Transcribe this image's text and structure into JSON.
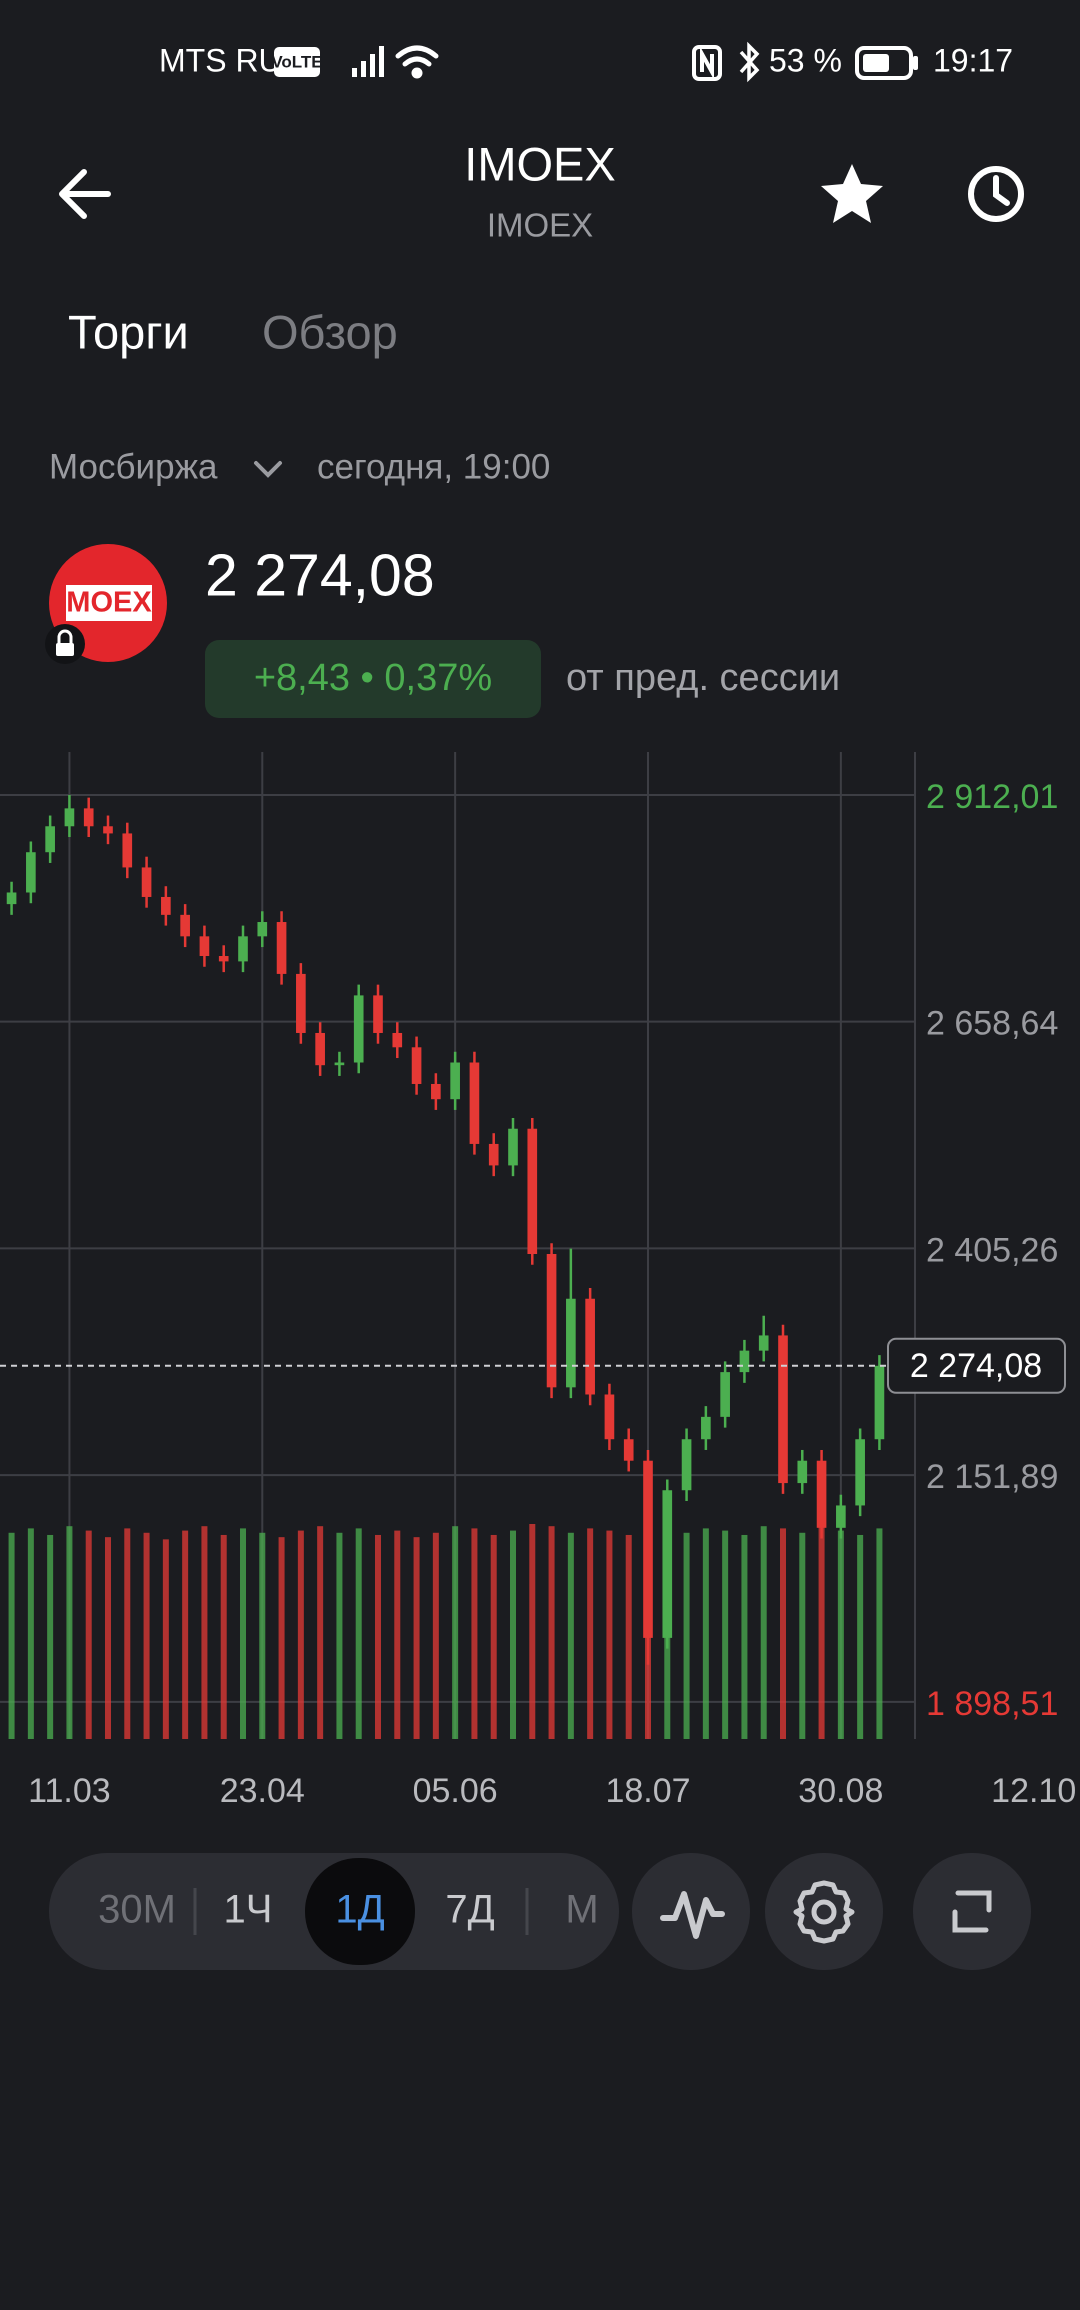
{
  "status_bar": {
    "carrier": "MTS RUS",
    "volte": "VoLTE",
    "battery": "53 %",
    "time": "19:17"
  },
  "header": {
    "title": "IMOEX",
    "subtitle": "IMOEX"
  },
  "tabs": [
    "Торги",
    "Обзор"
  ],
  "exchange": "Мосбиржа",
  "session_time": "сегодня, 19:00",
  "logo": "MOEX",
  "price": "2 274,08",
  "change": "+8,43 • 0,37%",
  "change_label": "от пред. сессии",
  "timeframes": [
    "30M",
    "1Ч",
    "1Д",
    "7Д",
    "М"
  ],
  "selected_timeframe": "1Д",
  "chart_data": {
    "type": "candlestick",
    "grid": true,
    "up_color": "#4caf50",
    "down_color": "#e53935",
    "xlim": [
      -0.6,
      55.4
    ],
    "xticks": [
      {
        "value": 3,
        "label": "11.03"
      },
      {
        "value": 13,
        "label": "23.04"
      },
      {
        "value": 23,
        "label": "05.06"
      },
      {
        "value": 33,
        "label": "18.07"
      },
      {
        "value": 43,
        "label": "30.08"
      },
      {
        "value": 53,
        "label": "12.10"
      }
    ],
    "ylim": [
      1857,
      2960
    ],
    "yticks": [
      {
        "value": 2912.01,
        "label": "2 912,01"
      },
      {
        "value": 2658.64,
        "label": "2 658,64"
      },
      {
        "value": 2405.26,
        "label": "2 405,26"
      },
      {
        "value": 2151.89,
        "label": "2 151,89"
      },
      {
        "value": 1898.51,
        "label": "1 898,51"
      }
    ],
    "last_price": {
      "value": 2274.08,
      "label": "2 274,08"
    },
    "open": [
      2790,
      2803,
      2848,
      2877,
      2897,
      2877,
      2869,
      2831,
      2798,
      2778,
      2754,
      2732,
      2726,
      2754,
      2770,
      2712,
      2646,
      2610,
      2613,
      2688,
      2646,
      2630,
      2589,
      2572,
      2613,
      2522,
      2498,
      2539,
      2399,
      2250,
      2349,
      2242,
      2192,
      2168,
      1970,
      2135,
      2192,
      2217,
      2267,
      2291,
      2308,
      2143,
      2168,
      2093,
      2118,
      2192
    ],
    "high": [
      2815,
      2860,
      2889,
      2912,
      2909,
      2889,
      2881,
      2843,
      2810,
      2790,
      2766,
      2744,
      2766,
      2782,
      2782,
      2724,
      2658,
      2625,
      2700,
      2700,
      2658,
      2642,
      2601,
      2625,
      2625,
      2534,
      2551,
      2551,
      2411,
      2405,
      2361,
      2254,
      2204,
      2180,
      2147,
      2204,
      2229,
      2279,
      2303,
      2330,
      2320,
      2180,
      2180,
      2130,
      2204,
      2286
    ],
    "low": [
      2778,
      2791,
      2836,
      2865,
      2865,
      2857,
      2819,
      2786,
      2766,
      2742,
      2720,
      2714,
      2714,
      2742,
      2700,
      2634,
      2598,
      2598,
      2601,
      2634,
      2618,
      2577,
      2560,
      2560,
      2510,
      2486,
      2486,
      2387,
      2238,
      2238,
      2230,
      2180,
      2156,
      1940,
      1958,
      2123,
      2180,
      2205,
      2255,
      2279,
      2131,
      2131,
      2081,
      2081,
      2106,
      2180
    ],
    "close": [
      2803,
      2848,
      2877,
      2897,
      2877,
      2869,
      2831,
      2798,
      2778,
      2754,
      2732,
      2726,
      2754,
      2770,
      2712,
      2646,
      2610,
      2613,
      2688,
      2646,
      2630,
      2589,
      2572,
      2613,
      2522,
      2498,
      2539,
      2399,
      2250,
      2349,
      2242,
      2192,
      2168,
      1970,
      2135,
      2192,
      2217,
      2267,
      2291,
      2308,
      2143,
      2168,
      2093,
      2118,
      2192,
      2274.08
    ],
    "volume": [
      94,
      96,
      93,
      97,
      95,
      92,
      96,
      94,
      91,
      95,
      97,
      93,
      96,
      94,
      92,
      95,
      97,
      94,
      96,
      93,
      95,
      92,
      94,
      97,
      96,
      93,
      95,
      98,
      97,
      94,
      96,
      95,
      93,
      98,
      97,
      94,
      96,
      95,
      93,
      97,
      96,
      94,
      98,
      95,
      93,
      96
    ]
  }
}
